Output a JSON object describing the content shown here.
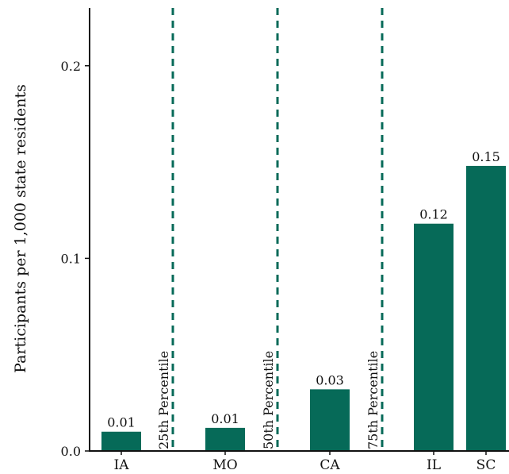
{
  "chart_data": {
    "type": "bar",
    "categories": [
      "IA",
      "MO",
      "CA",
      "IL",
      "SC"
    ],
    "values": [
      0.01,
      0.012,
      0.032,
      0.118,
      0.148
    ],
    "value_labels": [
      "0.01",
      "0.01",
      "0.03",
      "0.12",
      "0.15"
    ],
    "ylabel": "Participants per 1,000 state residents",
    "xlabel": "",
    "ylim": [
      0,
      0.23
    ],
    "yticks": [
      0.0,
      0.1,
      0.2
    ],
    "ytick_labels": [
      "0.0",
      "0.1",
      "0.2"
    ],
    "grid": false,
    "bar_color": "#066a58",
    "reference_lines": [
      {
        "label": "25th Percentile",
        "after_category": "IA",
        "color": "#066a58",
        "style": "dashed"
      },
      {
        "label": "50th Percentile",
        "after_category": "MO",
        "color": "#066a58",
        "style": "dashed"
      },
      {
        "label": "75th Percentile",
        "after_category": "CA",
        "color": "#066a58",
        "style": "dashed"
      }
    ]
  }
}
